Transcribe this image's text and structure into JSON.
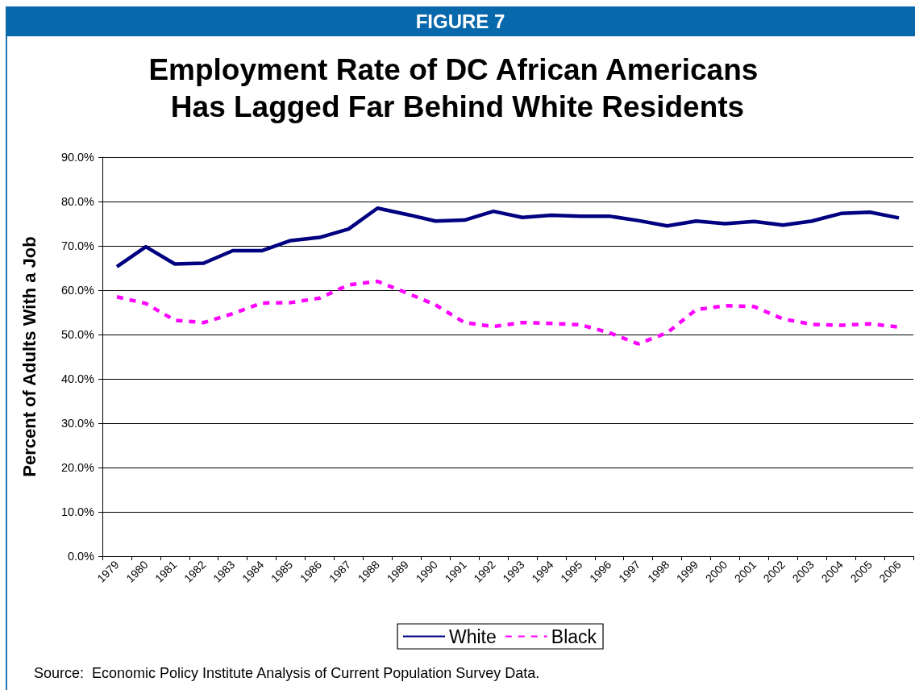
{
  "chart_data": {
    "type": "line",
    "title": "Employment Rate of DC African Americans Has Lagged Far Behind White Residents",
    "ylabel": "Percent of Adults With a Job",
    "annotations": [
      "FIGURE 7",
      "Source:  Economic Policy Institute Analysis of Current Population Survey Data."
    ],
    "categories": [
      "1979",
      "1980",
      "1981",
      "1982",
      "1983",
      "1984",
      "1985",
      "1986",
      "1987",
      "1988",
      "1989",
      "1990",
      "1991",
      "1992",
      "1993",
      "1994",
      "1995",
      "1996",
      "1997",
      "1998",
      "1999",
      "2000",
      "2001",
      "2002",
      "2003",
      "2004",
      "2005",
      "2006"
    ],
    "series": [
      {
        "name": "White",
        "color": "#000080",
        "line_style": "solid",
        "values": [
          65.3,
          69.8,
          65.9,
          66.1,
          68.9,
          68.9,
          71.2,
          71.9,
          73.8,
          78.5,
          77.1,
          75.6,
          75.8,
          77.8,
          76.4,
          76.9,
          76.7,
          76.7,
          75.7,
          74.5,
          75.6,
          75.0,
          75.5,
          74.7,
          75.6,
          77.3,
          77.6,
          76.3
        ]
      },
      {
        "name": "Black",
        "color": "#ff00ff",
        "line_style": "dashed",
        "values": [
          58.5,
          57.0,
          53.2,
          52.7,
          54.7,
          57.1,
          57.2,
          58.2,
          61.2,
          62.0,
          59.4,
          56.7,
          52.7,
          51.8,
          52.7,
          52.5,
          52.2,
          50.4,
          47.9,
          50.4,
          55.6,
          56.5,
          56.3,
          53.5,
          52.3,
          52.1,
          52.4,
          51.7
        ]
      }
    ],
    "ylim": [
      0,
      90
    ],
    "yticks": [
      {
        "value": 0,
        "label": "0.0%"
      },
      {
        "value": 10,
        "label": "10.0%"
      },
      {
        "value": 20,
        "label": "20.0%"
      },
      {
        "value": 30,
        "label": "30.0%"
      },
      {
        "value": 40,
        "label": "40.0%"
      },
      {
        "value": 50,
        "label": "50.0%"
      },
      {
        "value": 60,
        "label": "60.0%"
      },
      {
        "value": 70,
        "label": "70.0%"
      },
      {
        "value": 80,
        "label": "80.0%"
      },
      {
        "value": 90,
        "label": "90.0%"
      }
    ],
    "grid": "y",
    "legend": "bottom",
    "marker": "none"
  }
}
